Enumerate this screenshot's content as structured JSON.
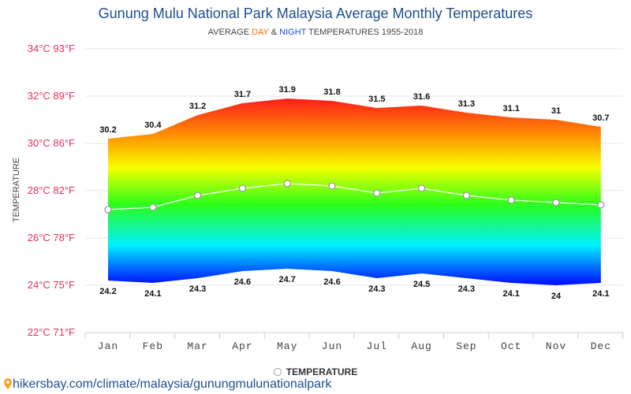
{
  "page": {
    "title": "Gunung Mulu National Park Malaysia Average Monthly Temperatures",
    "subtitle_pre": "AVERAGE ",
    "subtitle_day": "DAY",
    "subtitle_mid": " & ",
    "subtitle_night": "NIGHT",
    "subtitle_post": " TEMPERATURES 1955-2018",
    "legend_label": "TEMPERATURE",
    "footer_url": "hikersbay.com/climate/malaysia/gunungmulunationalpark"
  },
  "colors": {
    "title": "#1f4e8c",
    "tick_y": "#e0315d",
    "grid": "#e6e6e6",
    "avg_line": "#ffffff",
    "marker_stroke": "#9a9a9a"
  },
  "chart_data": {
    "type": "area",
    "title": "Gunung Mulu National Park Malaysia Average Monthly Temperatures",
    "ylabel": "TEMPERATURE",
    "ylim": [
      22,
      34
    ],
    "grid": true,
    "legend_position": "bottom-center",
    "y_ticks": [
      {
        "value": 22,
        "label": "22°C 71°F"
      },
      {
        "value": 24,
        "label": "24°C 75°F"
      },
      {
        "value": 26,
        "label": "26°C 78°F"
      },
      {
        "value": 28,
        "label": "28°C 82°F"
      },
      {
        "value": 30,
        "label": "30°C 86°F"
      },
      {
        "value": 32,
        "label": "32°C 89°F"
      },
      {
        "value": 34,
        "label": "34°C 93°F"
      }
    ],
    "categories": [
      "Jan",
      "Feb",
      "Mar",
      "Apr",
      "May",
      "Jun",
      "Jul",
      "Aug",
      "Sep",
      "Oct",
      "Nov",
      "Dec"
    ],
    "series": [
      {
        "name": "Day (max)",
        "values": [
          30.2,
          30.4,
          31.2,
          31.7,
          31.9,
          31.8,
          31.5,
          31.6,
          31.3,
          31.1,
          31,
          30.7
        ]
      },
      {
        "name": "Night (min)",
        "values": [
          24.2,
          24.1,
          24.3,
          24.6,
          24.7,
          24.6,
          24.3,
          24.5,
          24.3,
          24.1,
          24,
          24.1
        ]
      },
      {
        "name": "TEMPERATURE",
        "values": [
          27.2,
          27.3,
          27.8,
          28.1,
          28.3,
          28.2,
          27.9,
          28.1,
          27.8,
          27.6,
          27.5,
          27.4
        ]
      }
    ]
  }
}
